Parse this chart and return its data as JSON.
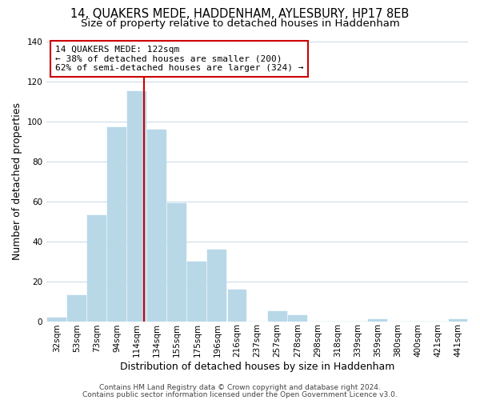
{
  "title": "14, QUAKERS MEDE, HADDENHAM, AYLESBURY, HP17 8EB",
  "subtitle": "Size of property relative to detached houses in Haddenham",
  "xlabel": "Distribution of detached houses by size in Haddenham",
  "ylabel": "Number of detached properties",
  "bar_labels": [
    "32sqm",
    "53sqm",
    "73sqm",
    "94sqm",
    "114sqm",
    "134sqm",
    "155sqm",
    "175sqm",
    "196sqm",
    "216sqm",
    "237sqm",
    "257sqm",
    "278sqm",
    "298sqm",
    "318sqm",
    "339sqm",
    "359sqm",
    "380sqm",
    "400sqm",
    "421sqm",
    "441sqm"
  ],
  "bar_values": [
    2,
    13,
    53,
    97,
    115,
    96,
    59,
    30,
    36,
    16,
    0,
    5,
    3,
    0,
    0,
    0,
    1,
    0,
    0,
    0,
    1
  ],
  "bar_color": "#b8d8e8",
  "vline_color": "#cc0000",
  "annotation_text": "14 QUAKERS MEDE: 122sqm\n← 38% of detached houses are smaller (200)\n62% of semi-detached houses are larger (324) →",
  "annotation_box_color": "#ffffff",
  "annotation_box_edge": "#cc0000",
  "ylim": [
    0,
    140
  ],
  "footer1": "Contains HM Land Registry data © Crown copyright and database right 2024.",
  "footer2": "Contains public sector information licensed under the Open Government Licence v3.0.",
  "background_color": "#ffffff",
  "grid_color": "#c8dcea",
  "title_fontsize": 10.5,
  "subtitle_fontsize": 9.5,
  "axis_label_fontsize": 9,
  "tick_fontsize": 7.5,
  "footer_fontsize": 6.5
}
